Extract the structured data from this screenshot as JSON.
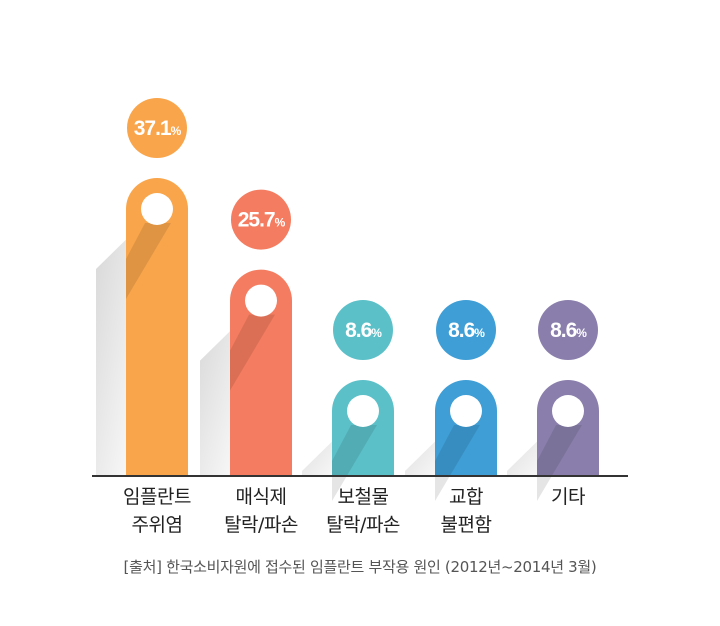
{
  "chart_data": {
    "type": "bar",
    "categories": [
      [
        "임플란트",
        "주위염"
      ],
      [
        "매식제",
        "탈락/파손"
      ],
      [
        "보철물",
        "탈락/파손"
      ],
      [
        "교합",
        "불편함"
      ],
      [
        "기타"
      ]
    ],
    "values": [
      37.1,
      25.7,
      8.6,
      8.6,
      8.6
    ],
    "value_labels": [
      "37.1",
      "25.7",
      "8.6",
      "8.6",
      "8.6"
    ],
    "unit": "%",
    "colors": [
      "#f9a54b",
      "#f47c60",
      "#5cc0c9",
      "#3f9ed6",
      "#8a7fac"
    ],
    "grid": false,
    "legend": "none"
  },
  "source_note": "[출처] 한국소비자원에 접수된 임플란트 부작용 원인 (2012년~2014년 3월)"
}
